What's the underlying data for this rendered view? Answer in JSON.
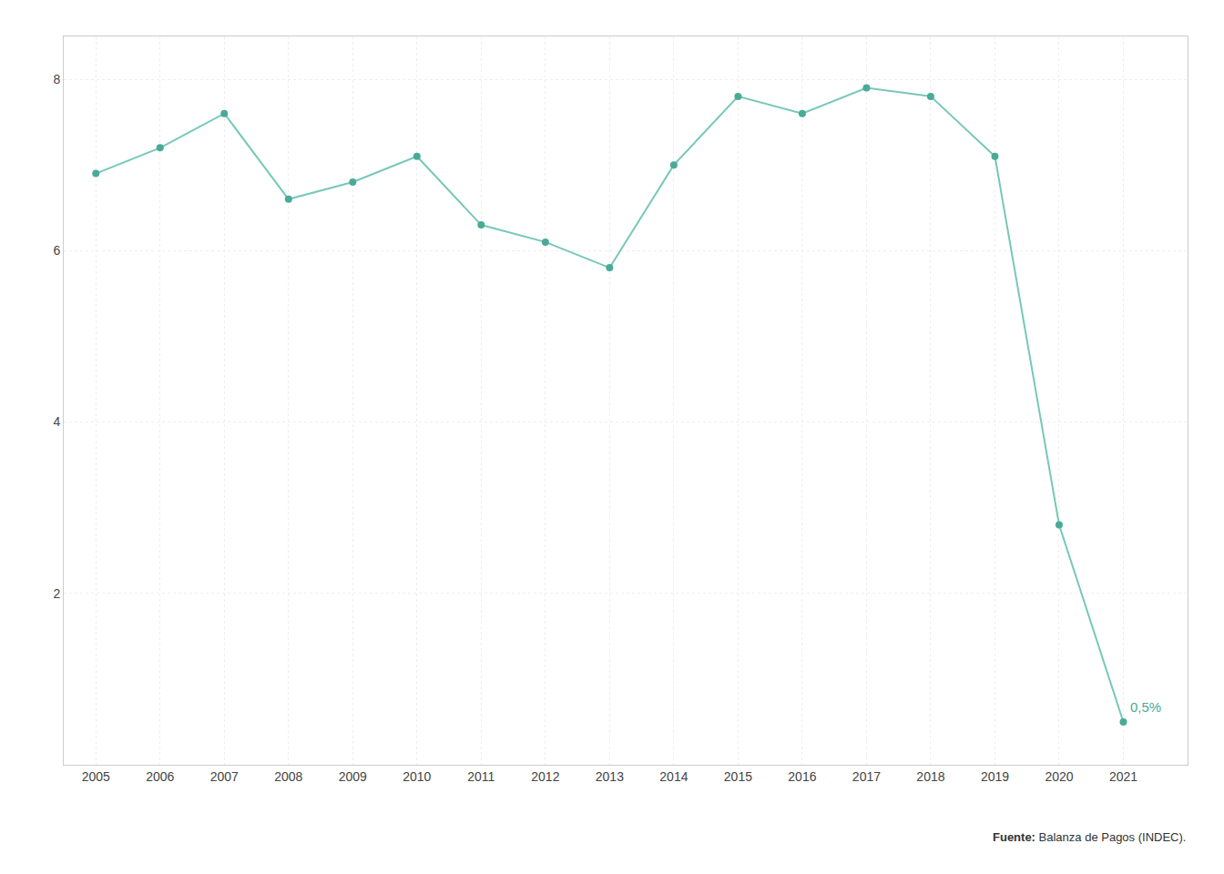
{
  "chart_data": {
    "type": "line",
    "x": [
      2005,
      2006,
      2007,
      2008,
      2009,
      2010,
      2011,
      2012,
      2013,
      2014,
      2015,
      2016,
      2017,
      2018,
      2019,
      2020,
      2021
    ],
    "values": [
      6.9,
      7.2,
      7.6,
      6.6,
      6.8,
      7.1,
      6.3,
      6.1,
      5.8,
      7.0,
      7.8,
      7.6,
      7.9,
      7.8,
      7.1,
      2.8,
      0.5
    ],
    "color": "#76c8b8",
    "marker": "circle",
    "marker_color": "#4aaa98",
    "annotation": {
      "text": "0,5%",
      "color": "#4aaa98"
    },
    "source_label": "Fuente:",
    "source": "Balanza de Pagos (INDEC).",
    "xlim": [
      2004.5,
      2022.0
    ],
    "xticks": [
      2005,
      2006,
      2007,
      2008,
      2009,
      2010,
      2011,
      2012,
      2013,
      2014,
      2015,
      2016,
      2017,
      2018,
      2019,
      2020,
      2021
    ],
    "ylim": [
      0,
      8.5
    ],
    "yticks": [
      2,
      4,
      6,
      8
    ],
    "grid": true
  }
}
